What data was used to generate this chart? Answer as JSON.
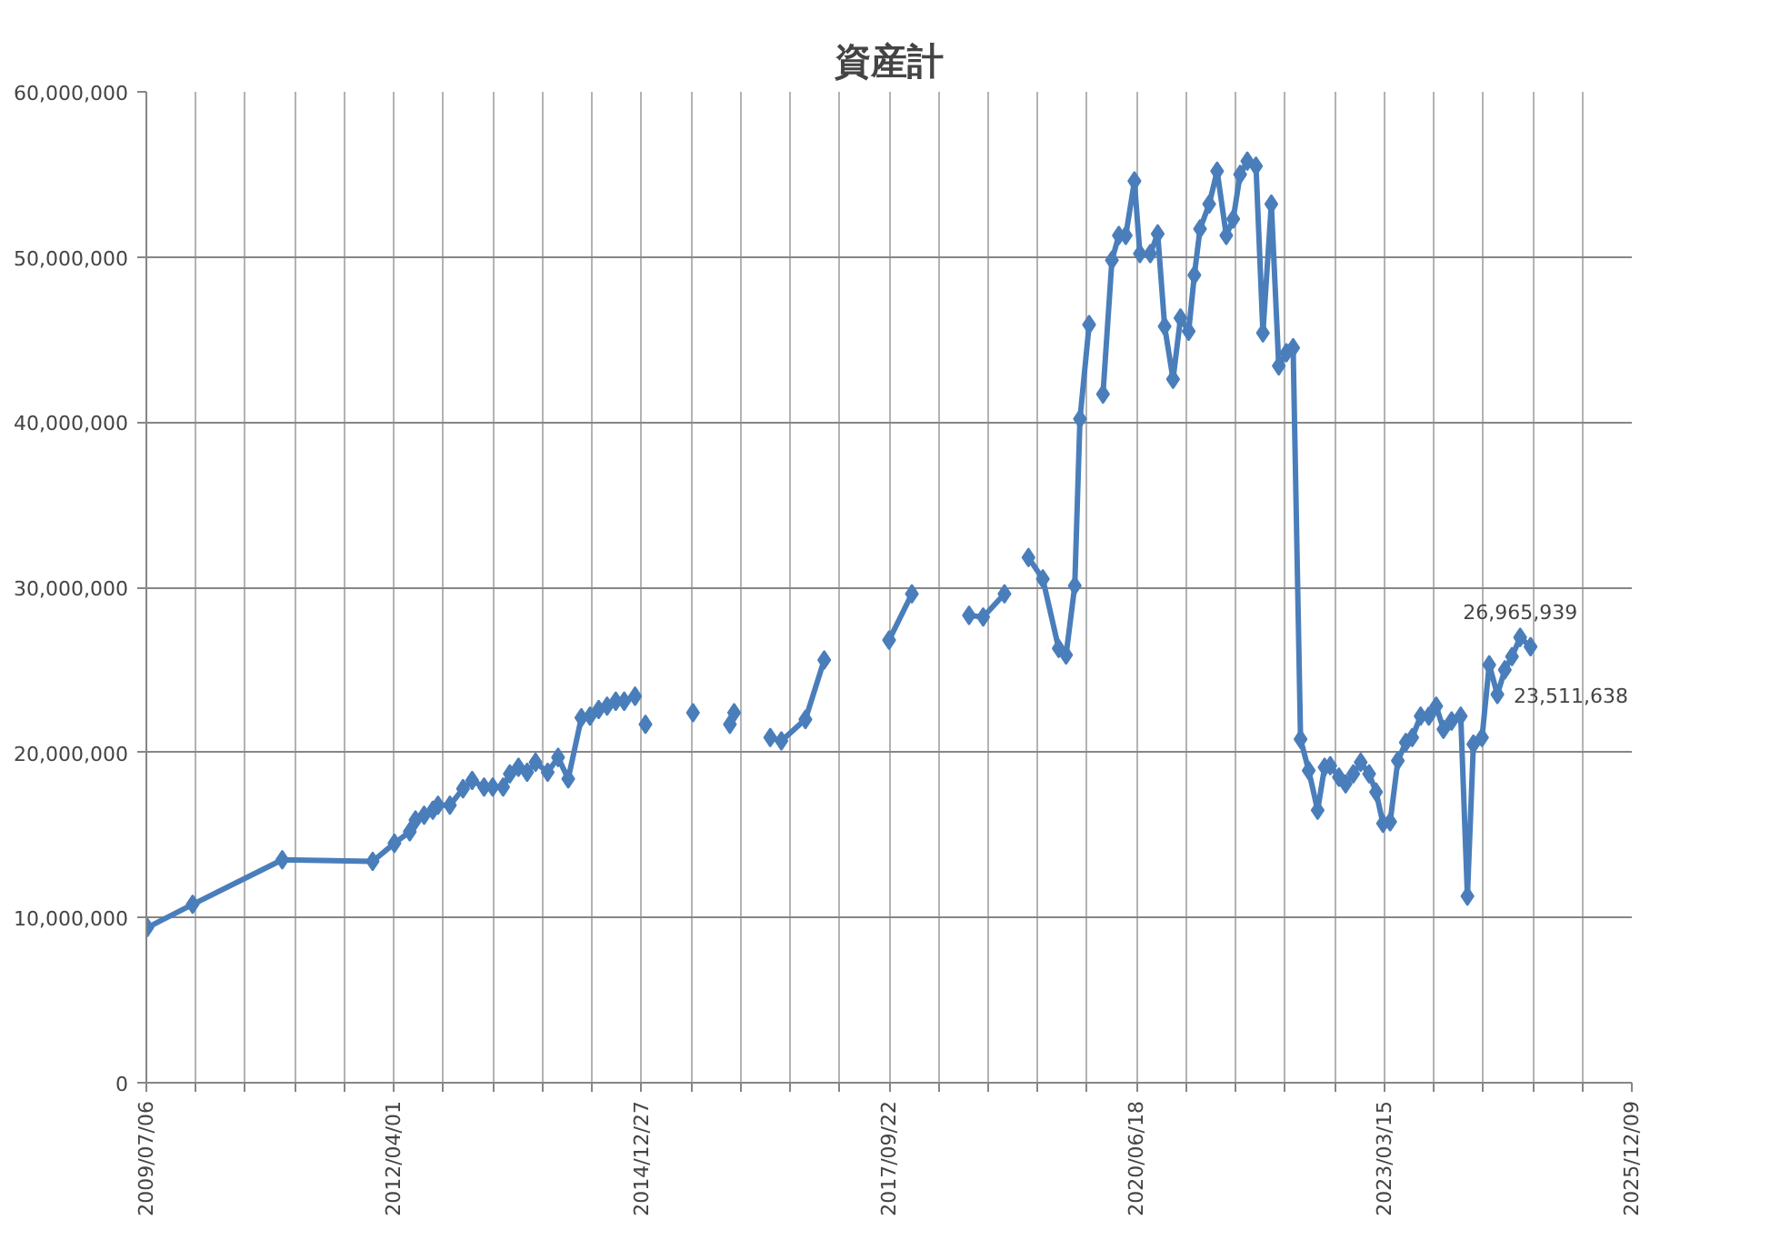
{
  "chart_data": {
    "type": "line",
    "title": "資産計",
    "grid": true,
    "marker": "diamond",
    "line_style": "solid",
    "xlim": [
      "2009-07-06",
      "2025-12-09"
    ],
    "xticks": [
      {
        "value": "2009-07-06",
        "label": "2009/07/06"
      },
      {
        "value": "2010-01-22",
        "label": null
      },
      {
        "value": "2010-08-10",
        "label": null
      },
      {
        "value": "2011-02-26",
        "label": null
      },
      {
        "value": "2011-09-14",
        "label": null
      },
      {
        "value": "2012-04-01",
        "label": "2012/04/01"
      },
      {
        "value": "2012-10-18",
        "label": null
      },
      {
        "value": "2013-05-06",
        "label": null
      },
      {
        "value": "2013-11-22",
        "label": null
      },
      {
        "value": "2014-06-10",
        "label": null
      },
      {
        "value": "2014-12-27",
        "label": "2014/12/27"
      },
      {
        "value": "2015-07-15",
        "label": null
      },
      {
        "value": "2016-01-31",
        "label": null
      },
      {
        "value": "2016-08-18",
        "label": null
      },
      {
        "value": "2017-03-06",
        "label": null
      },
      {
        "value": "2017-09-22",
        "label": "2017/09/22"
      },
      {
        "value": "2018-04-10",
        "label": null
      },
      {
        "value": "2018-10-27",
        "label": null
      },
      {
        "value": "2019-05-15",
        "label": null
      },
      {
        "value": "2019-12-01",
        "label": null
      },
      {
        "value": "2020-06-18",
        "label": "2020/06/18"
      },
      {
        "value": "2021-01-04",
        "label": null
      },
      {
        "value": "2021-07-23",
        "label": null
      },
      {
        "value": "2022-02-08",
        "label": null
      },
      {
        "value": "2022-08-27",
        "label": null
      },
      {
        "value": "2023-03-15",
        "label": "2023/03/15"
      },
      {
        "value": "2023-10-01",
        "label": null
      },
      {
        "value": "2024-04-18",
        "label": null
      },
      {
        "value": "2024-11-04",
        "label": null
      },
      {
        "value": "2025-05-23",
        "label": null
      },
      {
        "value": "2025-12-09",
        "label": "2025/12/09"
      }
    ],
    "ylim": [
      0,
      60000000
    ],
    "yticks": [
      0,
      {
        "value": 10000000,
        "label": "10,000,000"
      },
      {
        "value": 20000000,
        "label": "20,000,000"
      },
      {
        "value": 30000000,
        "label": "30,000,000"
      },
      {
        "value": 40000000,
        "label": "40,000,000"
      },
      {
        "value": 50000000,
        "label": "50,000,000"
      },
      {
        "value": 60000000,
        "label": "60,000,000"
      }
    ],
    "series": [
      {
        "color": "#4a7ebb",
        "x": [
          "2009-07-10",
          "2010-01-09",
          "2011-01-06",
          "2012-01-06",
          "2012-04-03",
          "2012-06-04",
          "2012-06-27",
          "2012-08-01",
          "2012-09-05",
          "2012-09-26",
          "2012-11-13",
          "2013-01-05",
          "2013-02-11",
          "2013-03-31",
          "2013-05-05",
          "2013-06-16",
          "2013-07-13",
          "2013-08-17",
          "2013-09-21",
          "2013-10-25",
          "2013-12-13",
          "2014-01-24",
          "2014-03-06",
          "2014-04-28",
          "2014-06-02",
          "2014-07-07",
          "2014-08-10",
          "2014-09-14",
          "2014-10-18",
          "2014-12-01",
          "2014-12-20",
          "2015-01-12",
          "2015-04-15",
          "2015-07-23",
          "2015-10-01",
          "2015-12-19",
          "2016-01-05",
          "2016-03-15",
          "2016-05-30",
          "2016-07-14",
          "2016-10-19",
          "2017-01-03",
          "2017-05-15",
          "2017-09-22",
          "2017-12-23",
          "2018-04-15",
          "2018-08-11",
          "2018-10-07",
          "2019-01-01",
          "2019-02-20",
          "2019-04-08",
          "2019-06-05",
          "2019-08-08",
          "2019-09-07",
          "2019-10-12",
          "2019-11-02",
          "2019-12-09",
          "2020-01-05",
          "2020-02-03",
          "2020-03-10",
          "2020-04-07",
          "2020-05-05",
          "2020-06-09",
          "2020-07-01",
          "2020-08-12",
          "2020-09-11",
          "2020-10-09",
          "2020-11-12",
          "2020-12-12",
          "2021-01-14",
          "2021-02-06",
          "2021-03-01",
          "2021-04-07",
          "2021-05-09",
          "2021-06-15",
          "2021-07-13",
          "2021-08-10",
          "2021-09-08",
          "2021-10-13",
          "2021-11-10",
          "2021-12-14",
          "2022-01-13",
          "2022-02-13",
          "2022-03-12",
          "2022-04-11",
          "2022-05-14",
          "2022-06-19",
          "2022-07-17",
          "2022-08-09",
          "2022-09-13",
          "2022-10-10",
          "2022-11-10",
          "2022-12-10",
          "2023-01-13",
          "2023-02-10",
          "2023-03-10",
          "2023-04-08",
          "2023-05-09",
          "2023-06-10",
          "2023-07-06",
          "2023-08-09",
          "2023-09-11",
          "2023-10-11",
          "2023-11-09",
          "2023-12-12",
          "2024-01-18",
          "2024-02-14",
          "2024-03-09",
          "2024-04-13",
          "2024-05-12",
          "2024-06-14",
          "2024-07-14",
          "2024-08-12",
          "2024-09-14",
          "2024-10-26"
        ],
        "values": [
          9400000,
          10800000,
          13500000,
          13400000,
          14500000,
          15200000,
          15900000,
          16200000,
          16500000,
          16800000,
          16800000,
          17800000,
          18300000,
          17900000,
          17900000,
          17900000,
          18700000,
          19100000,
          18800000,
          19400000,
          18800000,
          19700000,
          18400000,
          22100000,
          22200000,
          22600000,
          22800000,
          23100000,
          23100000,
          23400000,
          null,
          21700000,
          null,
          22400000,
          null,
          21700000,
          22400000,
          null,
          20900000,
          20700000,
          22000000,
          25600000,
          null,
          26800000,
          29600000,
          null,
          28300000,
          28200000,
          29600000,
          null,
          31800000,
          30500000,
          26300000,
          25900000,
          30100000,
          40200000,
          45900000,
          null,
          41700000,
          49800000,
          51300000,
          51300000,
          54600000,
          50200000,
          50200000,
          51400000,
          45800000,
          42600000,
          46300000,
          45500000,
          48900000,
          51700000,
          53200000,
          55200000,
          51300000,
          52300000,
          55000000,
          55800000,
          55500000,
          45400000,
          53200000,
          43400000,
          44200000,
          44500000,
          20800000,
          18900000,
          16500000,
          19100000,
          19200000,
          18500000,
          18100000,
          18700000,
          19400000,
          18700000,
          17600000,
          15700000,
          15800000,
          19500000,
          20600000,
          20900000,
          22200000,
          22200000,
          22800000,
          21400000,
          21900000,
          22200000,
          11300000,
          20500000,
          20900000,
          25300000,
          23511638,
          25000000,
          25800000,
          26965939,
          26400000
        ]
      }
    ],
    "annotations": [
      {
        "text": "26,965,939",
        "x": "2024-09-14",
        "y": 26965939
      },
      {
        "text": "23,511,638",
        "x": "2024-06-14",
        "y": 23511638
      }
    ]
  }
}
